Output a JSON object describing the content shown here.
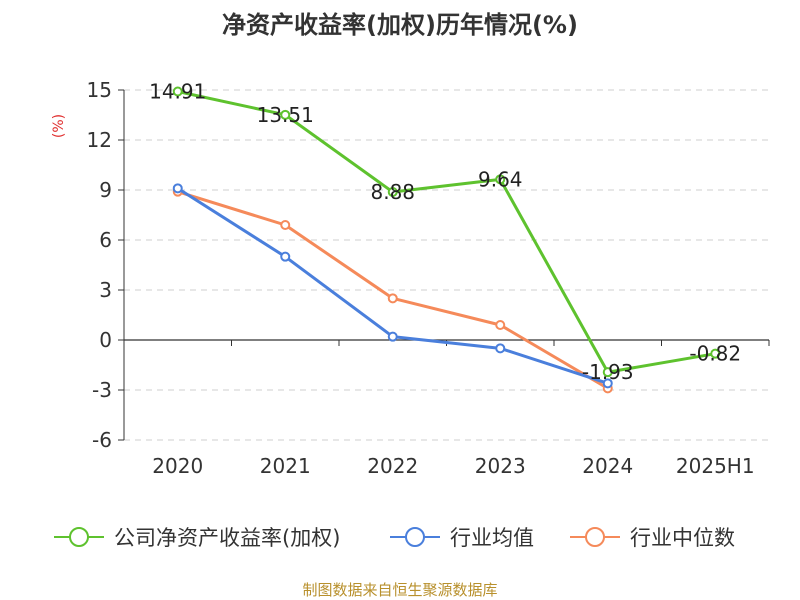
{
  "title": "净资产收益率(加权)历年情况(%)",
  "source": "制图数据来自恒生聚源数据库",
  "chart_data": {
    "type": "line",
    "title": "净资产收益率(加权)历年情况(%)",
    "xlabel": "",
    "ylabel": "(%)",
    "categories": [
      "2020",
      "2021",
      "2022",
      "2023",
      "2024",
      "2025H1"
    ],
    "ylim": [
      -6,
      15
    ],
    "yticks": [
      "15",
      "12",
      "9",
      "6",
      "3",
      "0",
      "-3",
      "-6"
    ],
    "grid": "horizontal-dashed",
    "legend": "bottom",
    "series": [
      {
        "name": "公司净资产收益率(加权)",
        "color": "#5ec22e",
        "values": [
          14.91,
          13.51,
          8.88,
          9.64,
          -1.93,
          -0.82
        ],
        "labels": [
          "14.91",
          "13.51",
          "8.88",
          "9.64",
          "-1.93",
          "-0.82"
        ]
      },
      {
        "name": "行业均值",
        "color": "#4a7fdc",
        "values": [
          9.1,
          5.0,
          0.2,
          -0.5,
          -2.6,
          null
        ]
      },
      {
        "name": "行业中位数",
        "color": "#f58a5a",
        "values": [
          8.9,
          6.9,
          2.5,
          0.9,
          -2.9,
          null
        ]
      }
    ]
  }
}
